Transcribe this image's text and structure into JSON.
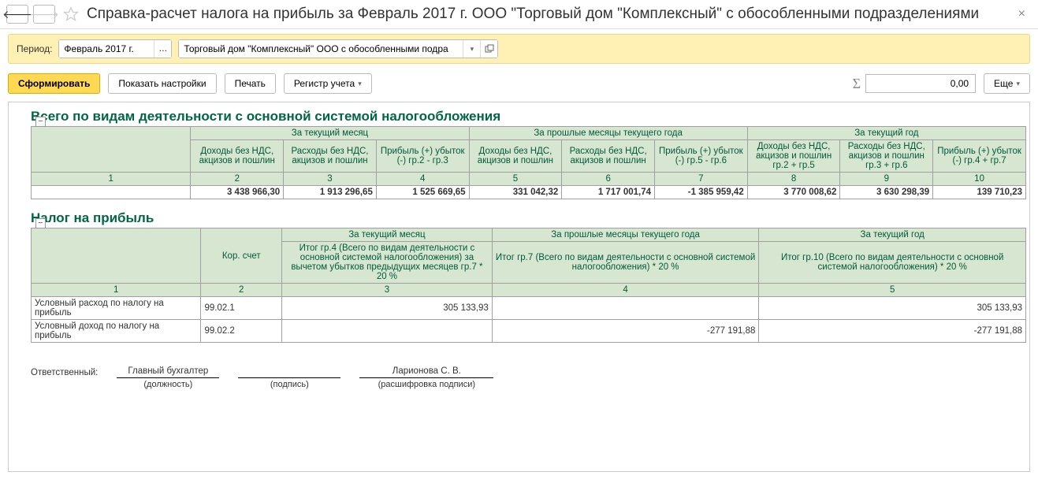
{
  "header": {
    "title": "Справка-расчет налога на прибыль  за Февраль 2017 г. ООО \"Торговый дом \"Комплексный\" с обособленными подразделениями"
  },
  "params": {
    "period_label": "Период:",
    "period_value": "Февраль 2017 г.",
    "org_value": "Торговый дом \"Комплексный\" ООО с обособленными подра"
  },
  "toolbar": {
    "generate": "Сформировать",
    "show_settings": "Показать настройки",
    "print": "Печать",
    "register": "Регистр учета",
    "sum_value": "0,00",
    "more": "Еще"
  },
  "section1": {
    "title": "Всего по видам деятельности с основной системой налогообложения",
    "group_headers": [
      "За текущий месяц",
      "За прошлые месяцы текущего года",
      "За текущий год"
    ],
    "cols": [
      "Доходы без НДС, акцизов и пошлин",
      "Расходы без НДС, акцизов и пошлин",
      "Прибыль (+) убыток (-) гр.2 - гр.3",
      "Доходы без НДС, акцизов и пошлин",
      "Расходы без НДС, акцизов и пошлин",
      "Прибыль (+) убыток (-) гр.5 - гр.6",
      "Доходы без НДС, акцизов и пошлин гр.2 + гр.5",
      "Расходы без НДС, акцизов и пошлин гр.3 + гр.6",
      "Прибыль (+) убыток (-) гр.4 + гр.7"
    ],
    "nums": [
      "1",
      "2",
      "3",
      "4",
      "5",
      "6",
      "7",
      "8",
      "9",
      "10"
    ],
    "row": [
      "3 438 966,30",
      "1 913 296,65",
      "1 525 669,65",
      "331 042,32",
      "1 717 001,74",
      "-1 385 959,42",
      "3 770 008,62",
      "3 630 298,39",
      "139 710,23"
    ]
  },
  "section2": {
    "title": "Налог на прибыль",
    "head_acc": "Кор. счет",
    "group_headers": [
      "За текущий месяц",
      "За прошлые месяцы текущего года",
      "За текущий год"
    ],
    "sub": [
      "Итог гр.4 (Всего по видам деятельности с основной системой налогообложения) за вычетом убытков предыдущих месяцев гр.7 * 20 %",
      "Итог гр.7 (Всего по видам деятельности с основной системой налогообложения) * 20 %",
      "Итог гр.10 (Всего по видам деятельности с основной системой налогообложения) * 20 %"
    ],
    "nums": [
      "1",
      "2",
      "3",
      "4",
      "5"
    ],
    "rows": [
      {
        "label": "Условный расход по налогу на прибыль",
        "acc": "99.02.1",
        "v3": "305 133,93",
        "v4": "",
        "v5": "305 133,93"
      },
      {
        "label": "Условный доход по налогу на прибыль",
        "acc": "99.02.2",
        "v3": "",
        "v4": "-277 191,88",
        "v5": "-277 191,88"
      }
    ]
  },
  "sign": {
    "resp_label": "Ответственный:",
    "position_value": "Главный бухгалтер",
    "position_caption": "(должность)",
    "sign_caption": "(подпись)",
    "name_value": "Ларионова С. В.",
    "name_caption": "(расшифровка подписи)"
  },
  "colors": {
    "header_green": "#006644",
    "table_header_bg": "#d7e6d0",
    "table_header_fg": "#005a3c",
    "param_bg": "#fff0b3",
    "primary_btn": "#ffd954"
  }
}
